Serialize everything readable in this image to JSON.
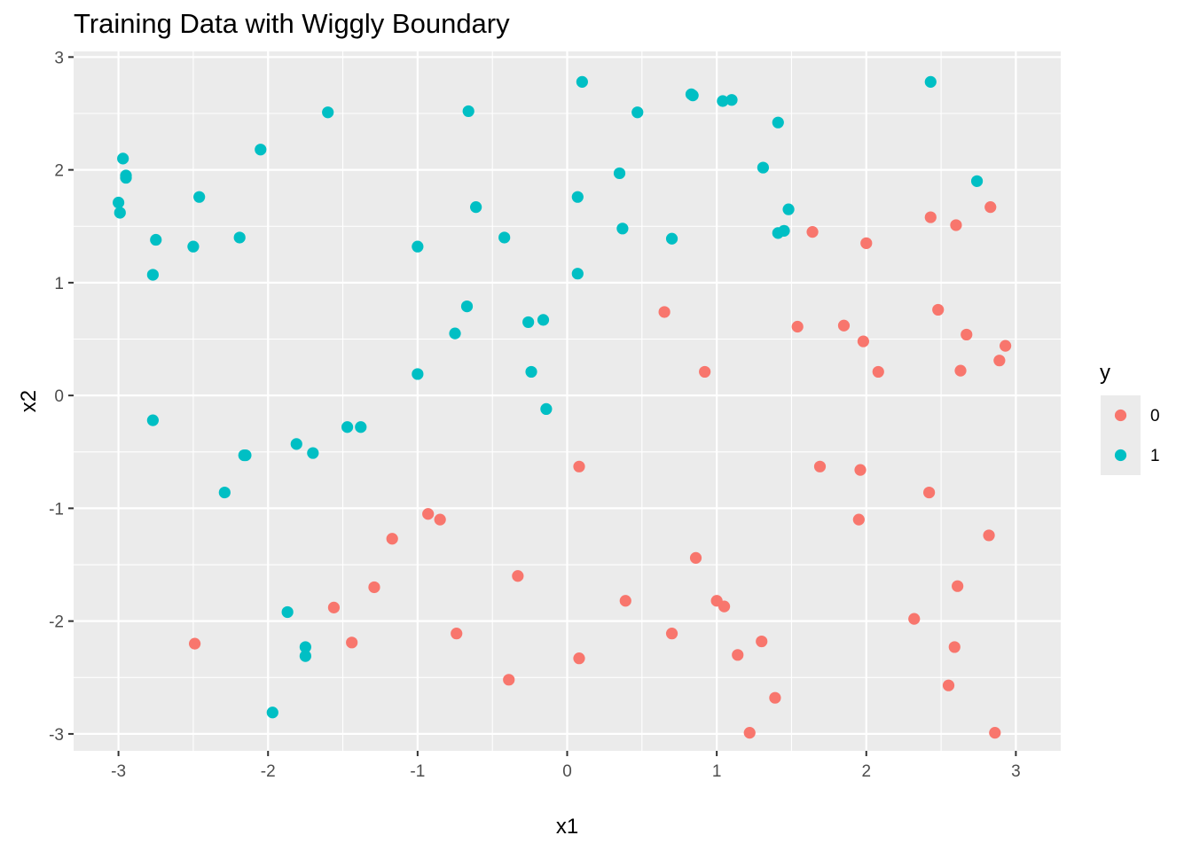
{
  "chart_data": {
    "type": "scatter",
    "title": "Training Data with Wiggly Boundary",
    "xlabel": "x1",
    "ylabel": "x2",
    "xlim": [
      -3.3,
      3.3
    ],
    "ylim": [
      -3.15,
      3.05
    ],
    "x_ticks": [
      -3,
      -2,
      -1,
      0,
      1,
      2,
      3
    ],
    "y_ticks": [
      -3,
      -2,
      -1,
      0,
      1,
      2,
      3
    ],
    "x_tick_labels": [
      "-3",
      "-2",
      "-1",
      "0",
      "1",
      "2",
      "3"
    ],
    "y_tick_labels": [
      "-3",
      "-2",
      "-1",
      "0",
      "1",
      "2",
      "3"
    ],
    "grid": true,
    "legend": {
      "title": "y",
      "placement": "right",
      "entries": [
        {
          "label": "0",
          "color": "#F8766D"
        },
        {
          "label": "1",
          "color": "#00BFC4"
        }
      ]
    },
    "series": [
      {
        "name": "0",
        "color": "#F8766D",
        "points": [
          [
            -2.49,
            -2.2
          ],
          [
            -1.56,
            -1.88
          ],
          [
            -1.44,
            -2.19
          ],
          [
            -1.29,
            -1.7
          ],
          [
            -1.17,
            -1.27
          ],
          [
            -0.93,
            -1.05
          ],
          [
            -0.85,
            -1.1
          ],
          [
            -0.74,
            -2.11
          ],
          [
            -0.39,
            -2.52
          ],
          [
            -0.33,
            -1.6
          ],
          [
            0.08,
            -0.63
          ],
          [
            0.08,
            -2.33
          ],
          [
            0.39,
            -1.82
          ],
          [
            0.65,
            0.74
          ],
          [
            0.7,
            -2.11
          ],
          [
            0.86,
            -1.44
          ],
          [
            0.92,
            0.21
          ],
          [
            1.0,
            -1.82
          ],
          [
            1.05,
            -1.87
          ],
          [
            1.14,
            -2.3
          ],
          [
            1.22,
            -2.99
          ],
          [
            1.3,
            -2.18
          ],
          [
            1.39,
            -2.68
          ],
          [
            1.54,
            0.61
          ],
          [
            1.64,
            1.45
          ],
          [
            1.69,
            -0.63
          ],
          [
            1.85,
            0.62
          ],
          [
            1.95,
            -1.1
          ],
          [
            1.96,
            -0.66
          ],
          [
            1.98,
            0.48
          ],
          [
            2.0,
            1.35
          ],
          [
            2.08,
            0.21
          ],
          [
            2.32,
            -1.98
          ],
          [
            2.42,
            -0.86
          ],
          [
            2.43,
            1.58
          ],
          [
            2.48,
            0.76
          ],
          [
            2.55,
            -2.57
          ],
          [
            2.59,
            -2.23
          ],
          [
            2.6,
            1.51
          ],
          [
            2.61,
            -1.69
          ],
          [
            2.63,
            0.22
          ],
          [
            2.67,
            0.54
          ],
          [
            2.82,
            -1.24
          ],
          [
            2.83,
            1.67
          ],
          [
            2.86,
            -2.99
          ],
          [
            2.89,
            0.31
          ],
          [
            2.93,
            0.44
          ]
        ]
      },
      {
        "name": "1",
        "color": "#00BFC4",
        "points": [
          [
            -3.0,
            1.71
          ],
          [
            -2.99,
            1.62
          ],
          [
            -2.97,
            2.1
          ],
          [
            -2.95,
            1.95
          ],
          [
            -2.95,
            1.93
          ],
          [
            -2.77,
            1.07
          ],
          [
            -2.77,
            -0.22
          ],
          [
            -2.75,
            1.38
          ],
          [
            -2.5,
            1.32
          ],
          [
            -2.46,
            1.76
          ],
          [
            -2.29,
            -0.86
          ],
          [
            -2.19,
            1.4
          ],
          [
            -2.16,
            -0.53
          ],
          [
            -2.15,
            -0.53
          ],
          [
            -2.05,
            2.18
          ],
          [
            -1.97,
            -2.81
          ],
          [
            -1.87,
            -1.92
          ],
          [
            -1.81,
            -0.43
          ],
          [
            -1.75,
            -2.23
          ],
          [
            -1.75,
            -2.31
          ],
          [
            -1.7,
            -0.51
          ],
          [
            -1.6,
            2.51
          ],
          [
            -1.47,
            -0.28
          ],
          [
            -1.38,
            -0.28
          ],
          [
            -1.0,
            1.32
          ],
          [
            -1.0,
            0.19
          ],
          [
            -0.75,
            0.55
          ],
          [
            -0.67,
            0.79
          ],
          [
            -0.66,
            2.52
          ],
          [
            -0.61,
            1.67
          ],
          [
            -0.42,
            1.4
          ],
          [
            -0.26,
            0.65
          ],
          [
            -0.24,
            0.21
          ],
          [
            -0.16,
            0.67
          ],
          [
            -0.14,
            -0.12
          ],
          [
            0.07,
            1.76
          ],
          [
            0.07,
            1.08
          ],
          [
            0.1,
            2.78
          ],
          [
            0.35,
            1.97
          ],
          [
            0.37,
            1.48
          ],
          [
            0.47,
            2.51
          ],
          [
            0.7,
            1.39
          ],
          [
            0.83,
            2.67
          ],
          [
            0.84,
            2.66
          ],
          [
            1.04,
            2.61
          ],
          [
            1.1,
            2.62
          ],
          [
            1.31,
            2.02
          ],
          [
            1.41,
            2.42
          ],
          [
            1.41,
            1.44
          ],
          [
            1.45,
            1.46
          ],
          [
            1.48,
            1.65
          ],
          [
            2.43,
            2.78
          ],
          [
            2.74,
            1.9
          ]
        ]
      }
    ]
  }
}
